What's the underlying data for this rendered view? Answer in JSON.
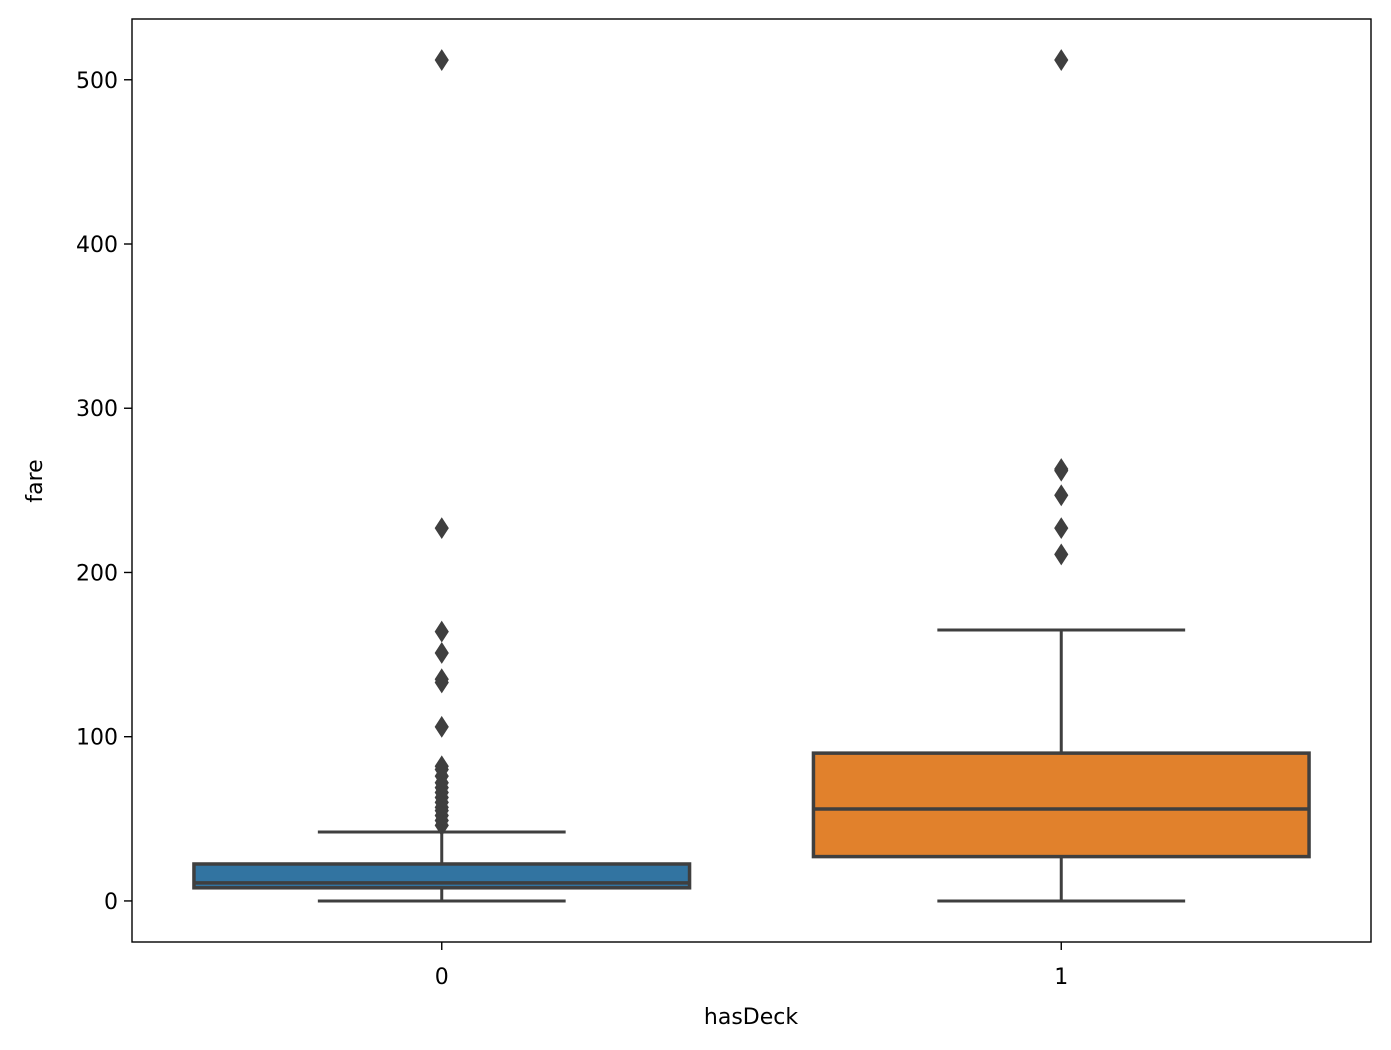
{
  "chart_data": {
    "type": "box",
    "xlabel": "hasDeck",
    "ylabel": "fare",
    "ylim": [
      -25,
      537
    ],
    "yticks": [
      0,
      100,
      200,
      300,
      400,
      500
    ],
    "grid": false,
    "legend": "none",
    "categories": [
      "0",
      "1"
    ],
    "boxes": [
      {
        "category": "0",
        "color": "#3274a1",
        "whisker_low": 0,
        "q1": 8,
        "median": 11,
        "q3": 22.5,
        "whisker_high": 42,
        "outliers": [
          46,
          49,
          52,
          55,
          57,
          60,
          63,
          66,
          69,
          72,
          76,
          80,
          82,
          106,
          133,
          135,
          151,
          164,
          227,
          512
        ]
      },
      {
        "category": "1",
        "color": "#e1812c",
        "whisker_low": 0,
        "q1": 27,
        "median": 56,
        "q3": 90,
        "whisker_high": 165,
        "outliers": [
          211,
          227,
          247,
          262,
          263,
          512
        ]
      }
    ]
  }
}
